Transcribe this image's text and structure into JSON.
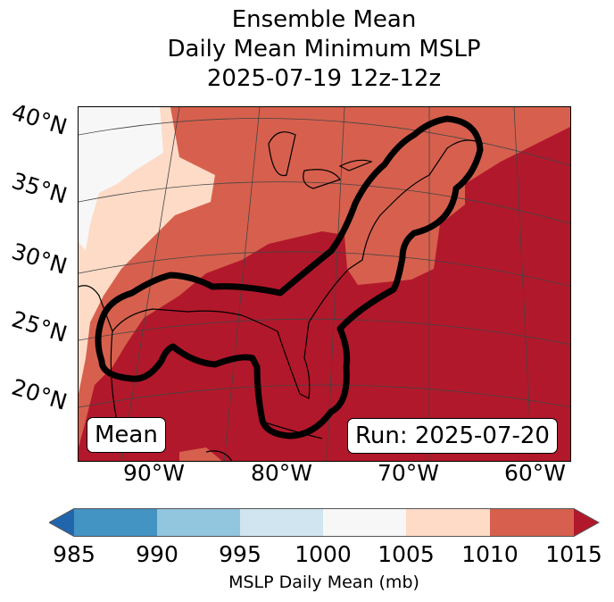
{
  "title": {
    "line1": "Ensemble Mean",
    "line2": "Daily Mean Minimum MSLP",
    "line3": "2025-07-19 12z-12z"
  },
  "map": {
    "lat_labels": [
      "40°N",
      "35°N",
      "30°N",
      "25°N",
      "20°N"
    ],
    "lon_labels": [
      "90°W",
      "80°W",
      "70°W",
      "60°W"
    ],
    "mean_label": "Mean",
    "run_label": "Run: 2025-07-20"
  },
  "colorbar": {
    "ticks": [
      "985",
      "990",
      "995",
      "1000",
      "1005",
      "1010",
      "1015"
    ],
    "label": "MSLP Daily Mean (mb)",
    "colors": {
      "under": "#2166ac",
      "985-990": "#4393c3",
      "990-995": "#92c5de",
      "995-1000": "#d1e5f0",
      "1000-1005": "#f7f7f7",
      "1005-1010": "#fddbc7",
      "1010-1015": "#d6604d",
      "over": "#b2182b"
    }
  }
}
